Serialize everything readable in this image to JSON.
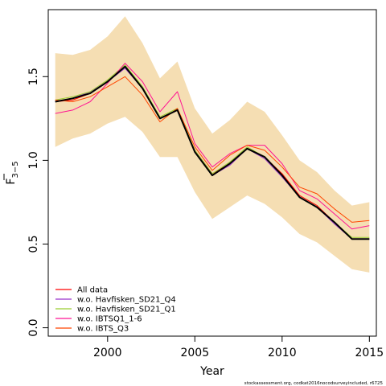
{
  "chart_data": {
    "type": "line",
    "xlabel": "Year",
    "ylabel_main": "F",
    "ylabel_sub": "3−5",
    "xlim": [
      1996.6,
      2015.4
    ],
    "ylim": [
      -0.05,
      1.9
    ],
    "x_ticks": [
      2000,
      2005,
      2010,
      2015
    ],
    "x_tick_labels": [
      "2000",
      "2005",
      "2010",
      "2015"
    ],
    "y_ticks": [
      0.0,
      0.5,
      1.0,
      1.5
    ],
    "y_tick_labels": [
      "0.0",
      "0.5",
      "1.0",
      "1.5"
    ],
    "grid": false,
    "legend_position": "bottom-left",
    "years": [
      1997,
      1998,
      1999,
      2000,
      2001,
      2002,
      2003,
      2004,
      2005,
      2006,
      2007,
      2008,
      2009,
      2010,
      2011,
      2012,
      2013,
      2014,
      2015
    ],
    "band": {
      "color": "#f5deb3",
      "upper": [
        1.64,
        1.63,
        1.66,
        1.74,
        1.86,
        1.7,
        1.49,
        1.59,
        1.31,
        1.16,
        1.24,
        1.35,
        1.29,
        1.15,
        1.0,
        0.93,
        0.82,
        0.73,
        0.75
      ],
      "lower": [
        1.08,
        1.13,
        1.16,
        1.22,
        1.26,
        1.17,
        1.02,
        1.02,
        0.81,
        0.65,
        0.72,
        0.79,
        0.74,
        0.66,
        0.56,
        0.51,
        0.43,
        0.35,
        0.33
      ]
    },
    "main_line": {
      "values": [
        1.35,
        1.37,
        1.4,
        1.47,
        1.56,
        1.43,
        1.25,
        1.3,
        1.05,
        0.91,
        0.98,
        1.07,
        1.02,
        0.91,
        0.78,
        0.72,
        0.63,
        0.53,
        0.53
      ]
    },
    "series": [
      {
        "name": "All data",
        "color": "#ff0000",
        "values": [
          1.35,
          1.36,
          1.4,
          1.47,
          1.56,
          1.43,
          1.25,
          1.3,
          1.06,
          0.92,
          0.98,
          1.07,
          1.02,
          0.92,
          0.79,
          0.73,
          0.63,
          0.53,
          0.53
        ]
      },
      {
        "name": "w.o. Havfisken_SD21_Q4",
        "color": "#9932cc",
        "values": [
          1.35,
          1.37,
          1.41,
          1.47,
          1.55,
          1.43,
          1.25,
          1.3,
          1.05,
          0.91,
          0.97,
          1.07,
          1.01,
          0.9,
          0.78,
          0.72,
          0.62,
          0.53,
          0.53
        ]
      },
      {
        "name": "w.o. Havfisken_SD21_Q1",
        "color": "#9acd32",
        "values": [
          1.36,
          1.38,
          1.41,
          1.48,
          1.57,
          1.44,
          1.26,
          1.31,
          1.06,
          0.92,
          0.99,
          1.08,
          1.02,
          0.91,
          0.78,
          0.72,
          0.63,
          0.54,
          0.54
        ]
      },
      {
        "name": "w.o. IBTSQ1_1-6",
        "color": "#ff1493",
        "values": [
          1.28,
          1.3,
          1.35,
          1.46,
          1.58,
          1.47,
          1.29,
          1.41,
          1.1,
          0.96,
          1.04,
          1.09,
          1.09,
          0.98,
          0.82,
          0.77,
          0.68,
          0.59,
          0.61
        ]
      },
      {
        "name": "w.o. IBTS_Q3",
        "color": "#ff4500",
        "values": [
          1.36,
          1.35,
          1.38,
          1.44,
          1.5,
          1.39,
          1.23,
          1.31,
          1.08,
          0.94,
          1.03,
          1.09,
          1.06,
          0.96,
          0.84,
          0.8,
          0.71,
          0.63,
          0.64
        ]
      }
    ],
    "footer": "stockassessment.org, codkat2016nocodsurveyincluded, r6725"
  }
}
